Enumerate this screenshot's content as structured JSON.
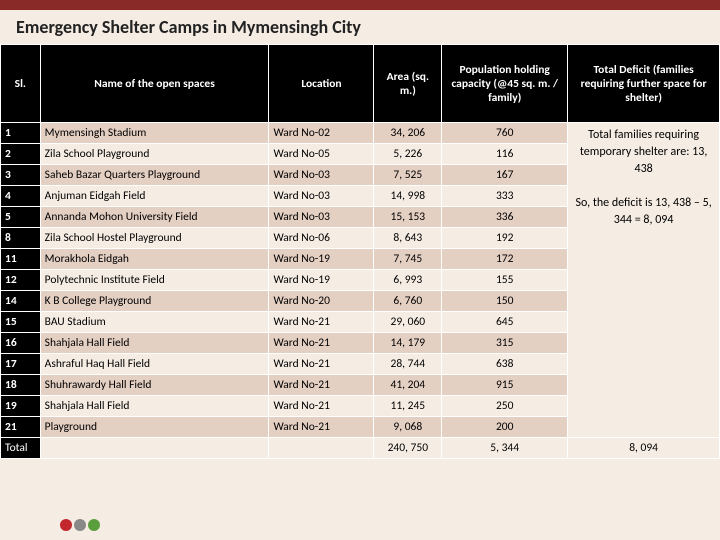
{
  "title": "Emergency Shelter Camps in Mymensingh City",
  "headers": {
    "sl": "Sl.",
    "name": "Name of the open spaces",
    "location": "Location",
    "area": "Area (sq. m.)",
    "pop": "Population holding capacity (@45 sq. m. / family)",
    "deficit": "Total Deficit (families requiring further space for shelter)"
  },
  "rows": [
    {
      "sl": "1",
      "name": "Mymensingh Stadium",
      "loc": "Ward No-02",
      "area": "34, 206",
      "pop": "760"
    },
    {
      "sl": "2",
      "name": "Zila School Playground",
      "loc": "Ward No-05",
      "area": "5, 226",
      "pop": "116"
    },
    {
      "sl": "3",
      "name": "Saheb Bazar Quarters Playground",
      "loc": "Ward No-03",
      "area": "7, 525",
      "pop": "167"
    },
    {
      "sl": "4",
      "name": "Anjuman Eidgah Field",
      "loc": "Ward No-03",
      "area": "14, 998",
      "pop": "333"
    },
    {
      "sl": "5",
      "name": "Annanda Mohon University Field",
      "loc": "Ward No-03",
      "area": "15, 153",
      "pop": "336"
    },
    {
      "sl": "8",
      "name": "Zila School Hostel Playground",
      "loc": "Ward No-06",
      "area": "8, 643",
      "pop": "192"
    },
    {
      "sl": "11",
      "name": "Morakhola Eidgah",
      "loc": "Ward No-19",
      "area": "7, 745",
      "pop": "172"
    },
    {
      "sl": "12",
      "name": "Polytechnic Institute Field",
      "loc": "Ward No-19",
      "area": "6, 993",
      "pop": "155"
    },
    {
      "sl": "14",
      "name": "K B College Playground",
      "loc": "Ward No-20",
      "area": "6, 760",
      "pop": "150"
    },
    {
      "sl": "15",
      "name": "BAU Stadium",
      "loc": "Ward No-21",
      "area": "29, 060",
      "pop": "645"
    },
    {
      "sl": "16",
      "name": "Shahjala Hall Field",
      "loc": "Ward No-21",
      "area": "14, 179",
      "pop": "315"
    },
    {
      "sl": "17",
      "name": "Ashraful Haq Hall Field",
      "loc": "Ward No-21",
      "area": "28, 744",
      "pop": "638"
    },
    {
      "sl": "18",
      "name": "Shuhrawardy Hall Field",
      "loc": "Ward No-21",
      "area": "41, 204",
      "pop": "915"
    },
    {
      "sl": "19",
      "name": "Shahjala Hall Field",
      "loc": "Ward No-21",
      "area": "11, 245",
      "pop": "250"
    },
    {
      "sl": "21",
      "name": "Playground",
      "loc": "Ward No-21",
      "area": "9, 068",
      "pop": "200"
    }
  ],
  "total": {
    "label": "Total",
    "area": "240, 750",
    "pop": "5, 344",
    "deficit": "8, 094"
  },
  "deficit_text": {
    "p1": "Total families requiring temporary shelter are: 13, 438",
    "p2": "So, the deficit is 13, 438 – 5, 344 = 8, 094"
  },
  "colors": {
    "header_bar": "#8a2a28",
    "page_bg": "#f5ede4",
    "th_bg": "#000000",
    "row_odd": "#e4cfc3",
    "row_even": "#f5ede4",
    "logo_red": "#c1272d",
    "logo_gray": "#888888",
    "logo_green": "#5a9e3e"
  }
}
